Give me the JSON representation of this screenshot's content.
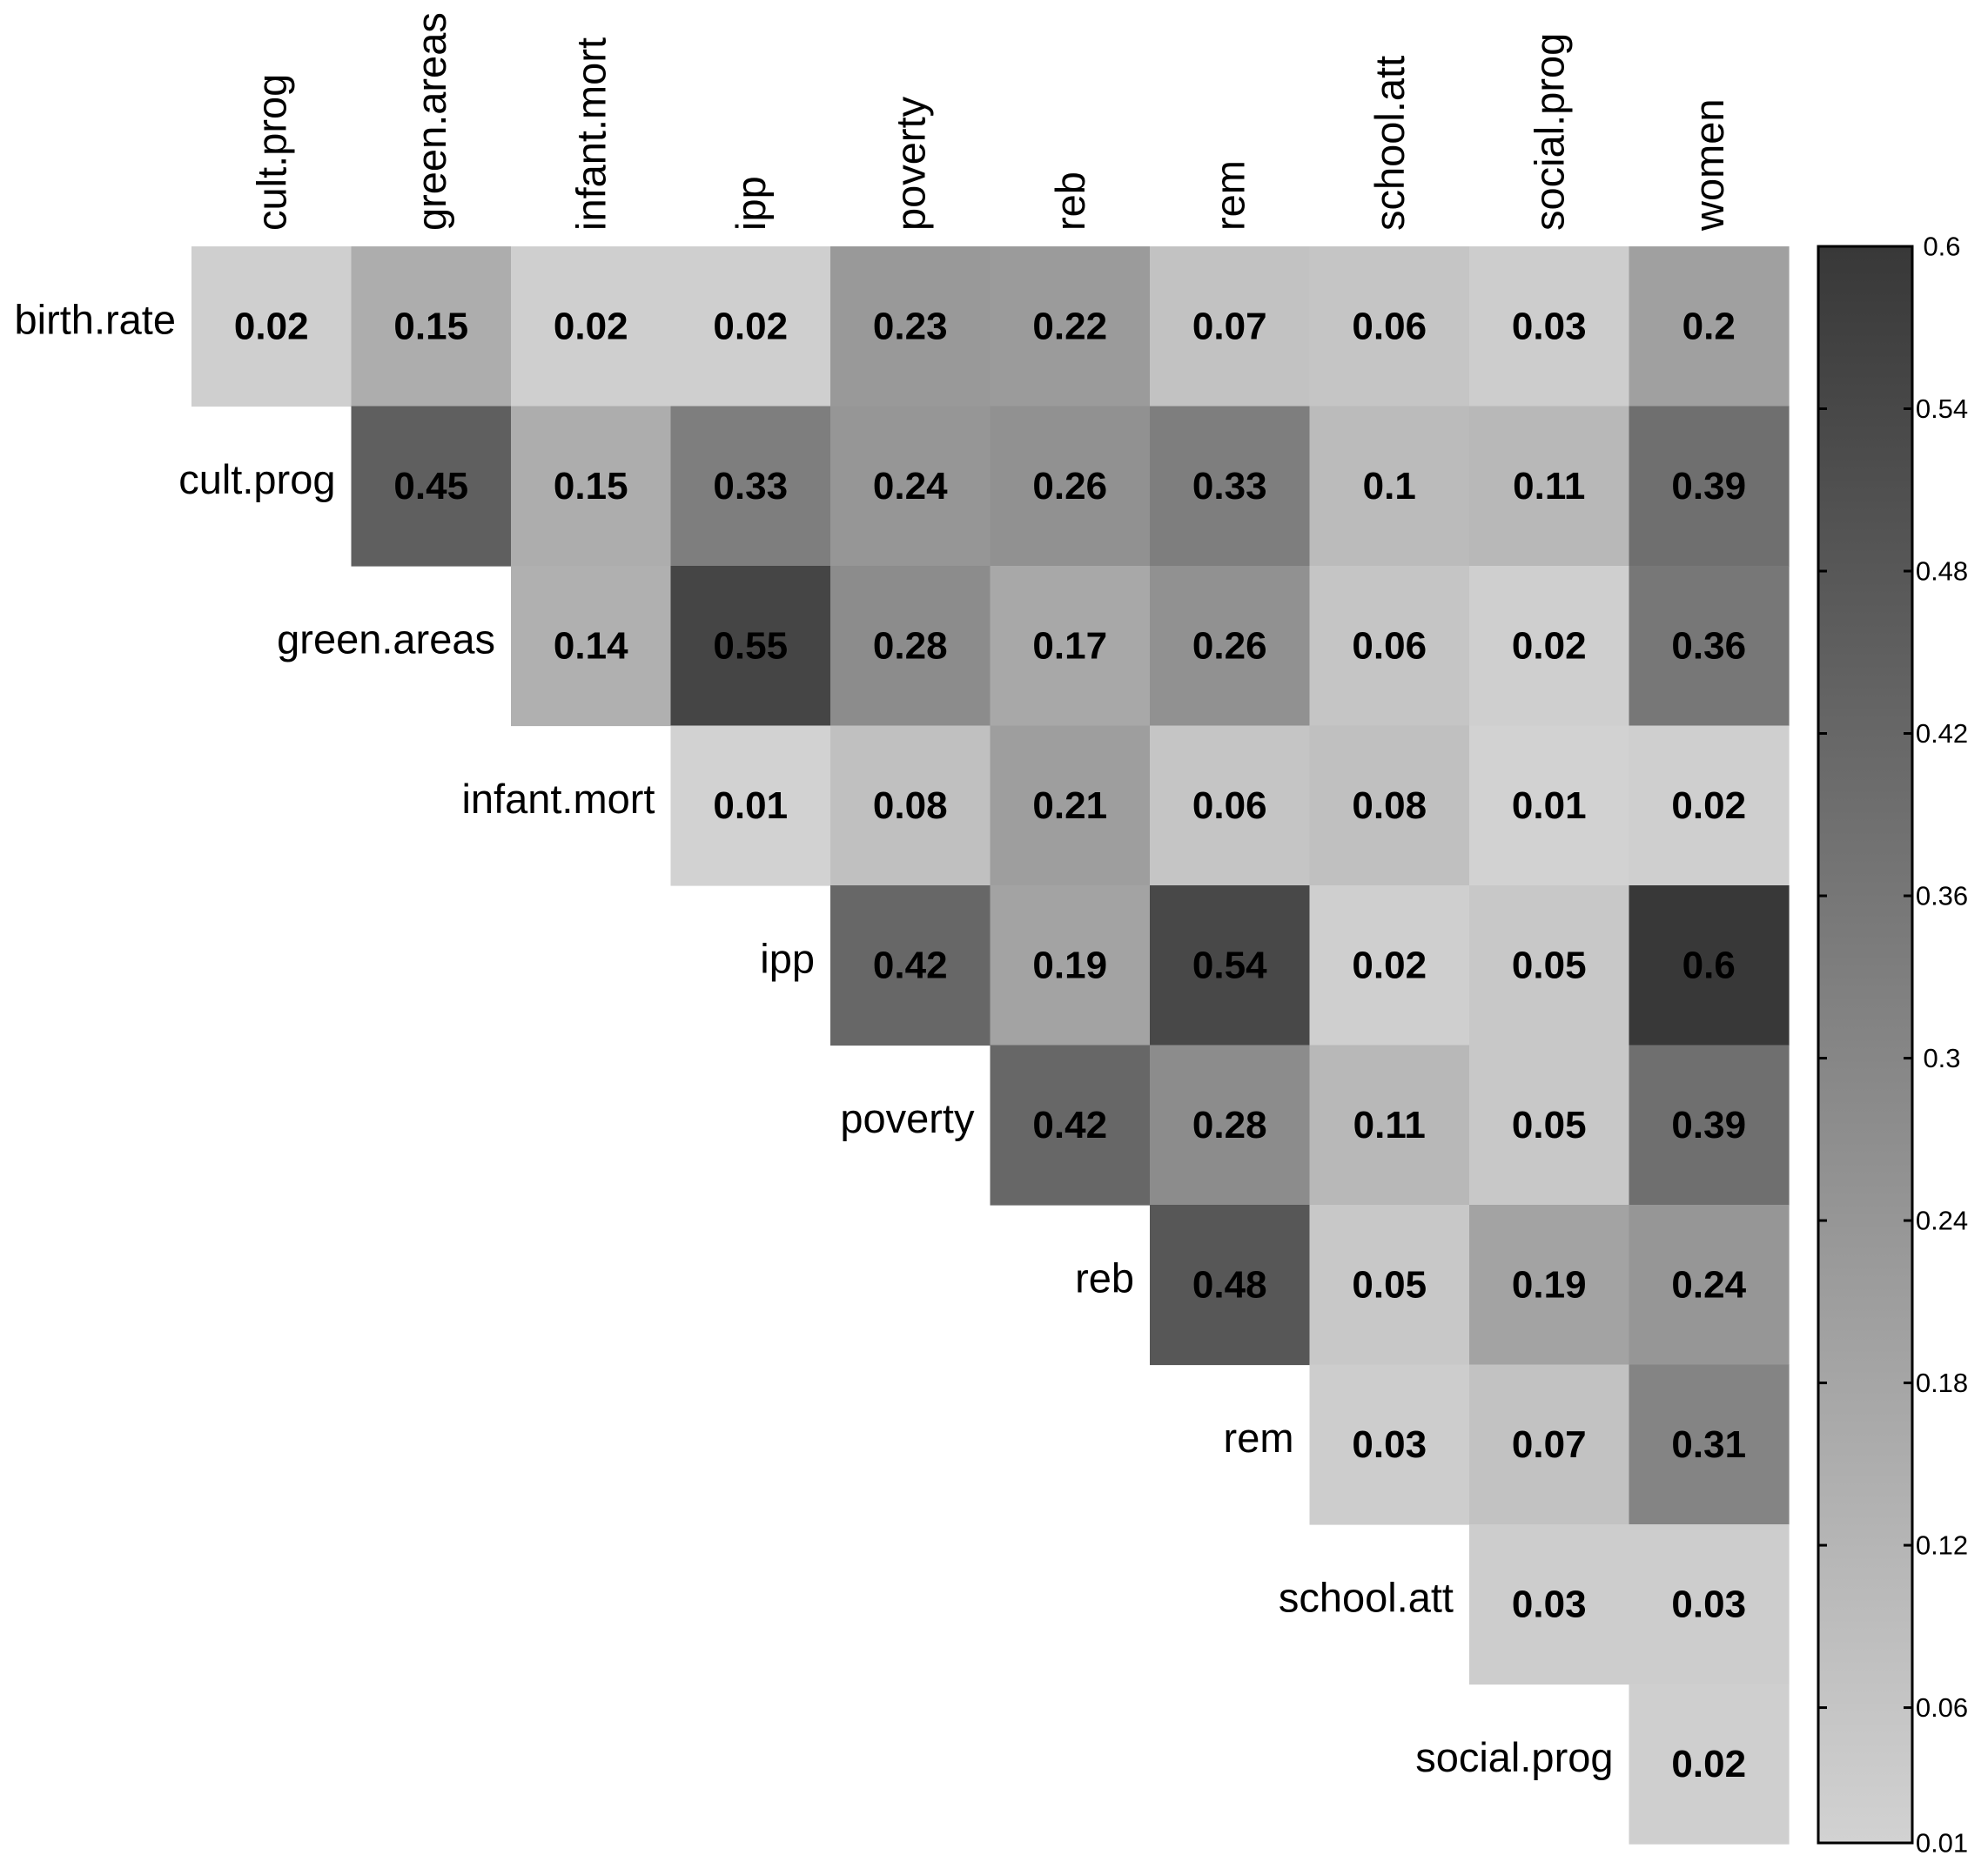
{
  "chart_data": {
    "type": "heatmap",
    "title": "",
    "rows": [
      "birth.rate",
      "cult.prog",
      "green.areas",
      "infant.mort",
      "ipp",
      "poverty",
      "reb",
      "rem",
      "school.att",
      "social.prog"
    ],
    "columns": [
      "cult.prog",
      "green.areas",
      "infant.mort",
      "ipp",
      "poverty",
      "reb",
      "rem",
      "school.att",
      "social.prog",
      "women"
    ],
    "values": [
      [
        0.02,
        0.15,
        0.02,
        0.02,
        0.23,
        0.22,
        0.07,
        0.06,
        0.03,
        0.2
      ],
      [
        null,
        0.45,
        0.15,
        0.33,
        0.24,
        0.26,
        0.33,
        0.1,
        0.11,
        0.39
      ],
      [
        null,
        null,
        0.14,
        0.55,
        0.28,
        0.17,
        0.26,
        0.06,
        0.02,
        0.36
      ],
      [
        null,
        null,
        null,
        0.01,
        0.08,
        0.21,
        0.06,
        0.08,
        0.01,
        0.02
      ],
      [
        null,
        null,
        null,
        null,
        0.42,
        0.19,
        0.54,
        0.02,
        0.05,
        0.6
      ],
      [
        null,
        null,
        null,
        null,
        null,
        0.42,
        0.28,
        0.11,
        0.05,
        0.39
      ],
      [
        null,
        null,
        null,
        null,
        null,
        null,
        0.48,
        0.05,
        0.19,
        0.24
      ],
      [
        null,
        null,
        null,
        null,
        null,
        null,
        null,
        0.03,
        0.07,
        0.31
      ],
      [
        null,
        null,
        null,
        null,
        null,
        null,
        null,
        null,
        0.03,
        0.03
      ],
      [
        null,
        null,
        null,
        null,
        null,
        null,
        null,
        null,
        null,
        0.02
      ]
    ],
    "value_labels": [
      [
        "0.02",
        "0.15",
        "0.02",
        "0.02",
        "0.23",
        "0.22",
        "0.07",
        "0.06",
        "0.03",
        "0.2"
      ],
      [
        null,
        "0.45",
        "0.15",
        "0.33",
        "0.24",
        "0.26",
        "0.33",
        "0.1",
        "0.11",
        "0.39"
      ],
      [
        null,
        null,
        "0.14",
        "0.55",
        "0.28",
        "0.17",
        "0.26",
        "0.06",
        "0.02",
        "0.36"
      ],
      [
        null,
        null,
        null,
        "0.01",
        "0.08",
        "0.21",
        "0.06",
        "0.08",
        "0.01",
        "0.02"
      ],
      [
        null,
        null,
        null,
        null,
        "0.42",
        "0.19",
        "0.54",
        "0.02",
        "0.05",
        "0.6"
      ],
      [
        null,
        null,
        null,
        null,
        null,
        "0.42",
        "0.28",
        "0.11",
        "0.05",
        "0.39"
      ],
      [
        null,
        null,
        null,
        null,
        null,
        null,
        "0.48",
        "0.05",
        "0.19",
        "0.24"
      ],
      [
        null,
        null,
        null,
        null,
        null,
        null,
        null,
        "0.03",
        "0.07",
        "0.31"
      ],
      [
        null,
        null,
        null,
        null,
        null,
        null,
        null,
        null,
        "0.03",
        "0.03"
      ],
      [
        null,
        null,
        null,
        null,
        null,
        null,
        null,
        null,
        null,
        "0.02"
      ]
    ],
    "colorbar": {
      "range": [
        0.01,
        0.6
      ],
      "ticks": [
        0.6,
        0.54,
        0.48,
        0.42,
        0.36,
        0.3,
        0.24,
        0.18,
        0.12,
        0.06,
        0.01
      ],
      "tick_labels": [
        "0.6",
        "0.54",
        "0.48",
        "0.42",
        "0.36",
        "0.3",
        "0.24",
        "0.18",
        "0.12",
        "0.06",
        "0.01"
      ],
      "low_color": "#d2d2d2",
      "high_color": "#383838",
      "placement": "right"
    },
    "legend": "colorbar"
  }
}
